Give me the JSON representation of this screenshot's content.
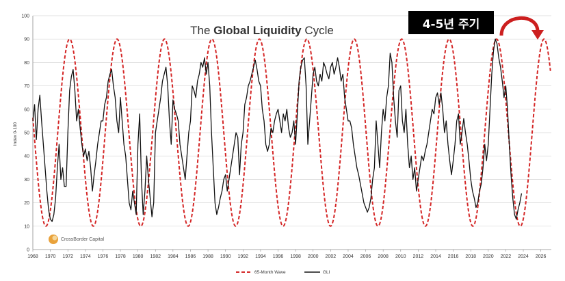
{
  "annotation": {
    "cycle_label": "4-5년 주기"
  },
  "logo_text": "CrossBorder Capital",
  "colors": {
    "wave": "#d42626",
    "gli": "#111111",
    "arrow": "#cc1f1f",
    "grid": "#d9d9d9"
  },
  "chart_data": {
    "type": "line",
    "title_regular_1": "The ",
    "title_bold": "Global Liquidity",
    "title_regular_2": " Cycle",
    "ylabel": "Index 0-100",
    "ylim": [
      0,
      100
    ],
    "xlim": [
      1968,
      2027.2
    ],
    "y_ticks": [
      0,
      10,
      20,
      30,
      40,
      50,
      60,
      70,
      80,
      90,
      100
    ],
    "x_ticks": [
      1968,
      1970,
      1972,
      1974,
      1976,
      1978,
      1980,
      1982,
      1984,
      1986,
      1988,
      1990,
      1992,
      1994,
      1996,
      1998,
      2000,
      2002,
      2004,
      2006,
      2008,
      2010,
      2012,
      2014,
      2016,
      2018,
      2020,
      2022,
      2024,
      2026
    ],
    "grid": "horizontal",
    "legend_position": "bottom-center",
    "series": [
      {
        "name": "65-Month Wave",
        "style": "dashed",
        "wave": {
          "period_years": 5.4167,
          "peak_year": 1972.2,
          "min": 10,
          "max": 90,
          "start": 1968,
          "end": 2027.1
        }
      },
      {
        "name": "GLI",
        "style": "solid",
        "points": [
          [
            1968.0,
            55
          ],
          [
            1968.2,
            62
          ],
          [
            1968.4,
            47
          ],
          [
            1968.6,
            60
          ],
          [
            1968.8,
            66
          ],
          [
            1969.0,
            55
          ],
          [
            1969.2,
            45
          ],
          [
            1969.4,
            35
          ],
          [
            1969.6,
            25
          ],
          [
            1969.8,
            17
          ],
          [
            1970.0,
            13
          ],
          [
            1970.2,
            12
          ],
          [
            1970.4,
            15
          ],
          [
            1970.6,
            22
          ],
          [
            1970.8,
            35
          ],
          [
            1971.0,
            45
          ],
          [
            1971.2,
            30
          ],
          [
            1971.4,
            35
          ],
          [
            1971.6,
            27
          ],
          [
            1971.8,
            27
          ],
          [
            1972.0,
            50
          ],
          [
            1972.2,
            68
          ],
          [
            1972.4,
            74
          ],
          [
            1972.6,
            77
          ],
          [
            1972.8,
            68
          ],
          [
            1973.0,
            55
          ],
          [
            1973.2,
            60
          ],
          [
            1973.4,
            52
          ],
          [
            1973.6,
            45
          ],
          [
            1973.8,
            40
          ],
          [
            1974.0,
            43
          ],
          [
            1974.2,
            38
          ],
          [
            1974.4,
            42
          ],
          [
            1974.6,
            35
          ],
          [
            1974.8,
            25
          ],
          [
            1975.0,
            32
          ],
          [
            1975.2,
            38
          ],
          [
            1975.4,
            45
          ],
          [
            1975.6,
            50
          ],
          [
            1975.8,
            55
          ],
          [
            1976.0,
            55
          ],
          [
            1976.2,
            62
          ],
          [
            1976.4,
            65
          ],
          [
            1976.6,
            72
          ],
          [
            1976.8,
            75
          ],
          [
            1977.0,
            77
          ],
          [
            1977.2,
            70
          ],
          [
            1977.4,
            65
          ],
          [
            1977.6,
            55
          ],
          [
            1977.8,
            50
          ],
          [
            1978.0,
            65
          ],
          [
            1978.2,
            55
          ],
          [
            1978.4,
            45
          ],
          [
            1978.6,
            40
          ],
          [
            1978.8,
            30
          ],
          [
            1979.0,
            20
          ],
          [
            1979.2,
            17
          ],
          [
            1979.4,
            25
          ],
          [
            1979.6,
            20
          ],
          [
            1979.8,
            15
          ],
          [
            1980.0,
            45
          ],
          [
            1980.2,
            58
          ],
          [
            1980.4,
            30
          ],
          [
            1980.6,
            15
          ],
          [
            1980.8,
            25
          ],
          [
            1981.0,
            40
          ],
          [
            1981.2,
            30
          ],
          [
            1981.4,
            22
          ],
          [
            1981.6,
            14
          ],
          [
            1981.8,
            20
          ],
          [
            1982.0,
            50
          ],
          [
            1982.2,
            55
          ],
          [
            1982.4,
            60
          ],
          [
            1982.6,
            65
          ],
          [
            1982.8,
            72
          ],
          [
            1983.0,
            75
          ],
          [
            1983.2,
            78
          ],
          [
            1983.4,
            70
          ],
          [
            1983.6,
            55
          ],
          [
            1983.8,
            45
          ],
          [
            1984.0,
            64
          ],
          [
            1984.2,
            60
          ],
          [
            1984.4,
            58
          ],
          [
            1984.6,
            55
          ],
          [
            1984.8,
            45
          ],
          [
            1985.0,
            40
          ],
          [
            1985.2,
            35
          ],
          [
            1985.4,
            30
          ],
          [
            1985.6,
            40
          ],
          [
            1985.8,
            50
          ],
          [
            1986.0,
            55
          ],
          [
            1986.2,
            70
          ],
          [
            1986.4,
            68
          ],
          [
            1986.6,
            65
          ],
          [
            1986.8,
            72
          ],
          [
            1987.0,
            75
          ],
          [
            1987.2,
            80
          ],
          [
            1987.4,
            78
          ],
          [
            1987.6,
            82
          ],
          [
            1987.8,
            75
          ],
          [
            1988.0,
            80
          ],
          [
            1988.2,
            70
          ],
          [
            1988.4,
            50
          ],
          [
            1988.6,
            35
          ],
          [
            1988.8,
            20
          ],
          [
            1989.0,
            15
          ],
          [
            1989.2,
            18
          ],
          [
            1989.4,
            22
          ],
          [
            1989.6,
            25
          ],
          [
            1989.8,
            30
          ],
          [
            1990.0,
            32
          ],
          [
            1990.2,
            25
          ],
          [
            1990.4,
            30
          ],
          [
            1990.6,
            35
          ],
          [
            1990.8,
            40
          ],
          [
            1991.0,
            45
          ],
          [
            1991.2,
            50
          ],
          [
            1991.4,
            48
          ],
          [
            1991.6,
            32
          ],
          [
            1991.8,
            45
          ],
          [
            1992.0,
            50
          ],
          [
            1992.2,
            62
          ],
          [
            1992.4,
            65
          ],
          [
            1992.6,
            70
          ],
          [
            1992.8,
            72
          ],
          [
            1993.0,
            75
          ],
          [
            1993.2,
            78
          ],
          [
            1993.4,
            81
          ],
          [
            1993.6,
            77
          ],
          [
            1993.8,
            72
          ],
          [
            1994.0,
            70
          ],
          [
            1994.2,
            60
          ],
          [
            1994.4,
            55
          ],
          [
            1994.6,
            45
          ],
          [
            1994.8,
            42
          ],
          [
            1995.0,
            45
          ],
          [
            1995.2,
            52
          ],
          [
            1995.4,
            50
          ],
          [
            1995.6,
            55
          ],
          [
            1995.8,
            58
          ],
          [
            1996.0,
            60
          ],
          [
            1996.2,
            55
          ],
          [
            1996.4,
            50
          ],
          [
            1996.6,
            58
          ],
          [
            1996.8,
            55
          ],
          [
            1997.0,
            60
          ],
          [
            1997.2,
            52
          ],
          [
            1997.4,
            48
          ],
          [
            1997.6,
            50
          ],
          [
            1997.8,
            55
          ],
          [
            1998.0,
            45
          ],
          [
            1998.2,
            58
          ],
          [
            1998.4,
            72
          ],
          [
            1998.6,
            78
          ],
          [
            1998.8,
            81
          ],
          [
            1999.0,
            82
          ],
          [
            1999.2,
            70
          ],
          [
            1999.4,
            45
          ],
          [
            1999.6,
            55
          ],
          [
            1999.8,
            65
          ],
          [
            2000.0,
            75
          ],
          [
            2000.2,
            78
          ],
          [
            2000.4,
            72
          ],
          [
            2000.6,
            70
          ],
          [
            2000.8,
            75
          ],
          [
            2001.0,
            72
          ],
          [
            2001.2,
            80
          ],
          [
            2001.4,
            78
          ],
          [
            2001.6,
            75
          ],
          [
            2001.8,
            73
          ],
          [
            2002.0,
            78
          ],
          [
            2002.2,
            80
          ],
          [
            2002.4,
            75
          ],
          [
            2002.6,
            78
          ],
          [
            2002.8,
            82
          ],
          [
            2003.0,
            78
          ],
          [
            2003.2,
            72
          ],
          [
            2003.4,
            75
          ],
          [
            2003.6,
            65
          ],
          [
            2003.8,
            60
          ],
          [
            2004.0,
            55
          ],
          [
            2004.2,
            55
          ],
          [
            2004.4,
            52
          ],
          [
            2004.6,
            45
          ],
          [
            2004.8,
            40
          ],
          [
            2005.0,
            35
          ],
          [
            2005.2,
            32
          ],
          [
            2005.4,
            28
          ],
          [
            2005.6,
            24
          ],
          [
            2005.8,
            20
          ],
          [
            2006.0,
            18
          ],
          [
            2006.2,
            16
          ],
          [
            2006.4,
            18
          ],
          [
            2006.6,
            22
          ],
          [
            2006.8,
            30
          ],
          [
            2007.0,
            35
          ],
          [
            2007.2,
            55
          ],
          [
            2007.4,
            45
          ],
          [
            2007.6,
            35
          ],
          [
            2007.8,
            50
          ],
          [
            2008.0,
            60
          ],
          [
            2008.2,
            55
          ],
          [
            2008.4,
            65
          ],
          [
            2008.6,
            70
          ],
          [
            2008.8,
            84
          ],
          [
            2009.0,
            80
          ],
          [
            2009.2,
            65
          ],
          [
            2009.4,
            55
          ],
          [
            2009.6,
            48
          ],
          [
            2009.8,
            68
          ],
          [
            2010.0,
            70
          ],
          [
            2010.2,
            55
          ],
          [
            2010.4,
            50
          ],
          [
            2010.6,
            60
          ],
          [
            2010.8,
            45
          ],
          [
            2011.0,
            35
          ],
          [
            2011.2,
            40
          ],
          [
            2011.4,
            30
          ],
          [
            2011.6,
            35
          ],
          [
            2011.8,
            25
          ],
          [
            2012.0,
            30
          ],
          [
            2012.2,
            35
          ],
          [
            2012.4,
            40
          ],
          [
            2012.6,
            38
          ],
          [
            2012.8,
            42
          ],
          [
            2013.0,
            45
          ],
          [
            2013.2,
            50
          ],
          [
            2013.4,
            55
          ],
          [
            2013.6,
            60
          ],
          [
            2013.8,
            58
          ],
          [
            2014.0,
            65
          ],
          [
            2014.2,
            67
          ],
          [
            2014.4,
            62
          ],
          [
            2014.6,
            67
          ],
          [
            2014.8,
            60
          ],
          [
            2015.0,
            50
          ],
          [
            2015.2,
            55
          ],
          [
            2015.4,
            45
          ],
          [
            2015.6,
            38
          ],
          [
            2015.8,
            32
          ],
          [
            2016.0,
            38
          ],
          [
            2016.2,
            45
          ],
          [
            2016.4,
            55
          ],
          [
            2016.6,
            58
          ],
          [
            2016.8,
            45
          ],
          [
            2017.0,
            50
          ],
          [
            2017.2,
            56
          ],
          [
            2017.4,
            50
          ],
          [
            2017.6,
            45
          ],
          [
            2017.8,
            38
          ],
          [
            2018.0,
            30
          ],
          [
            2018.2,
            25
          ],
          [
            2018.4,
            22
          ],
          [
            2018.6,
            18
          ],
          [
            2018.8,
            20
          ],
          [
            2019.0,
            25
          ],
          [
            2019.2,
            28
          ],
          [
            2019.4,
            35
          ],
          [
            2019.6,
            45
          ],
          [
            2019.8,
            38
          ],
          [
            2020.0,
            45
          ],
          [
            2020.2,
            60
          ],
          [
            2020.4,
            75
          ],
          [
            2020.6,
            85
          ],
          [
            2020.8,
            90
          ],
          [
            2021.0,
            88
          ],
          [
            2021.2,
            82
          ],
          [
            2021.4,
            78
          ],
          [
            2021.6,
            72
          ],
          [
            2021.8,
            65
          ],
          [
            2022.0,
            70
          ],
          [
            2022.2,
            60
          ],
          [
            2022.4,
            45
          ],
          [
            2022.6,
            32
          ],
          [
            2022.8,
            22
          ],
          [
            2023.0,
            15
          ],
          [
            2023.2,
            13
          ],
          [
            2023.4,
            17
          ],
          [
            2023.6,
            20
          ],
          [
            2023.8,
            24
          ]
        ]
      }
    ]
  }
}
